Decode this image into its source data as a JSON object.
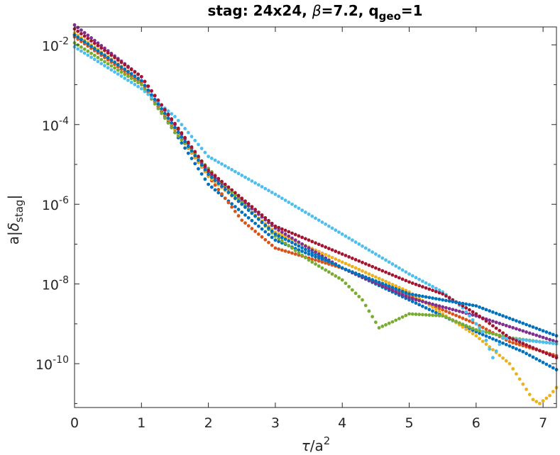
{
  "chart_data": {
    "type": "scatter",
    "title_parts": {
      "prefix": "stag: 24x24, ",
      "beta_symbol": "β",
      "beta_value": "=7.2, q",
      "geo_sub": "geo",
      "suffix": "=1"
    },
    "xlabel_parts": {
      "tau": "τ",
      "rest": "/a",
      "sup": "2"
    },
    "ylabel_parts": {
      "pre": "a|",
      "delta": "δ",
      "sub": "stag",
      "post": "|"
    },
    "xlim": [
      0,
      7.2
    ],
    "ylim_log10": [
      -11.1,
      -1.55
    ],
    "yscale": "log",
    "x_ticks": [
      "0",
      "1",
      "2",
      "3",
      "4",
      "5",
      "6",
      "7"
    ],
    "y_ticks": [
      {
        "base": "10",
        "exp": "-2"
      },
      {
        "base": "10",
        "exp": "-4"
      },
      {
        "base": "10",
        "exp": "-6"
      },
      {
        "base": "10",
        "exp": "-8"
      },
      {
        "base": "10",
        "exp": "-10"
      }
    ],
    "marker_step": 0.05,
    "series": [
      {
        "color": "#0072BD",
        "log10_y": [
          [
            0,
            -1.75
          ],
          [
            1,
            -2.9
          ],
          [
            2,
            -5.5
          ],
          [
            3,
            -6.9
          ],
          [
            4,
            -7.6
          ],
          [
            5,
            -8.4
          ],
          [
            6,
            -9.2
          ],
          [
            6.7,
            -9.7
          ],
          [
            7.2,
            -10.15
          ]
        ]
      },
      {
        "color": "#D95319",
        "log10_y": [
          [
            0,
            -1.8
          ],
          [
            1,
            -2.95
          ],
          [
            2,
            -5.3
          ],
          [
            2.5,
            -6.4
          ],
          [
            3,
            -7.1
          ],
          [
            3.5,
            -7.35
          ],
          [
            4,
            -7.6
          ],
          [
            5,
            -8.3
          ],
          [
            6,
            -9.0
          ],
          [
            6.5,
            -9.45
          ],
          [
            7.2,
            -9.8
          ]
        ]
      },
      {
        "color": "#EDB120",
        "log10_y": [
          [
            0,
            -1.7
          ],
          [
            1,
            -2.9
          ],
          [
            2,
            -5.3
          ],
          [
            3,
            -6.7
          ],
          [
            4,
            -7.45
          ],
          [
            5,
            -8.2
          ],
          [
            6,
            -9.3
          ],
          [
            6.5,
            -10.0
          ],
          [
            6.85,
            -10.9
          ],
          [
            6.95,
            -11.0
          ],
          [
            7.1,
            -10.8
          ],
          [
            7.2,
            -10.6
          ]
        ]
      },
      {
        "color": "#7E2F8E",
        "log10_y": [
          [
            0,
            -1.5
          ],
          [
            1,
            -2.8
          ],
          [
            2,
            -5.2
          ],
          [
            3,
            -6.6
          ],
          [
            4,
            -7.6
          ],
          [
            5,
            -8.35
          ],
          [
            6,
            -8.8
          ],
          [
            7.2,
            -9.45
          ]
        ]
      },
      {
        "color": "#77AC30",
        "log10_y": [
          [
            0,
            -1.95
          ],
          [
            1,
            -3.0
          ],
          [
            1.5,
            -4.2
          ],
          [
            2,
            -5.1
          ],
          [
            3,
            -6.8
          ],
          [
            3.5,
            -7.4
          ],
          [
            4,
            -7.9
          ],
          [
            4.3,
            -8.4
          ],
          [
            4.55,
            -9.1
          ],
          [
            4.75,
            -8.95
          ],
          [
            5,
            -8.75
          ],
          [
            5.5,
            -8.8
          ],
          [
            6,
            -9.15
          ],
          [
            6.5,
            -9.35
          ],
          [
            7.2,
            -9.5
          ]
        ]
      },
      {
        "color": "#4DBEEE",
        "log10_y": [
          [
            0,
            -2.05
          ],
          [
            1,
            -3.1
          ],
          [
            1.5,
            -3.8
          ],
          [
            2,
            -4.8
          ],
          [
            3,
            -5.75
          ],
          [
            4,
            -6.75
          ],
          [
            5,
            -7.75
          ],
          [
            5.5,
            -8.2
          ],
          [
            5.8,
            -8.6
          ],
          [
            6.1,
            -9.2
          ],
          [
            6.25,
            -9.85
          ],
          [
            6.4,
            -9.35
          ],
          [
            7.2,
            -9.5
          ]
        ]
      },
      {
        "color": "#A2142F",
        "log10_y": [
          [
            0,
            -1.6
          ],
          [
            1,
            -2.8
          ],
          [
            2,
            -5.15
          ],
          [
            3,
            -6.55
          ],
          [
            4,
            -7.25
          ],
          [
            5,
            -7.95
          ],
          [
            5.5,
            -8.25
          ],
          [
            6,
            -8.75
          ],
          [
            6.5,
            -9.35
          ],
          [
            7.2,
            -9.85
          ]
        ]
      },
      {
        "color": "#0072BD",
        "log10_y": [
          [
            0,
            -1.75
          ],
          [
            1,
            -2.9
          ],
          [
            2,
            -5.25
          ],
          [
            3,
            -6.75
          ],
          [
            4,
            -7.6
          ],
          [
            5,
            -8.25
          ],
          [
            6,
            -8.55
          ],
          [
            7.2,
            -9.3
          ]
        ]
      }
    ]
  }
}
